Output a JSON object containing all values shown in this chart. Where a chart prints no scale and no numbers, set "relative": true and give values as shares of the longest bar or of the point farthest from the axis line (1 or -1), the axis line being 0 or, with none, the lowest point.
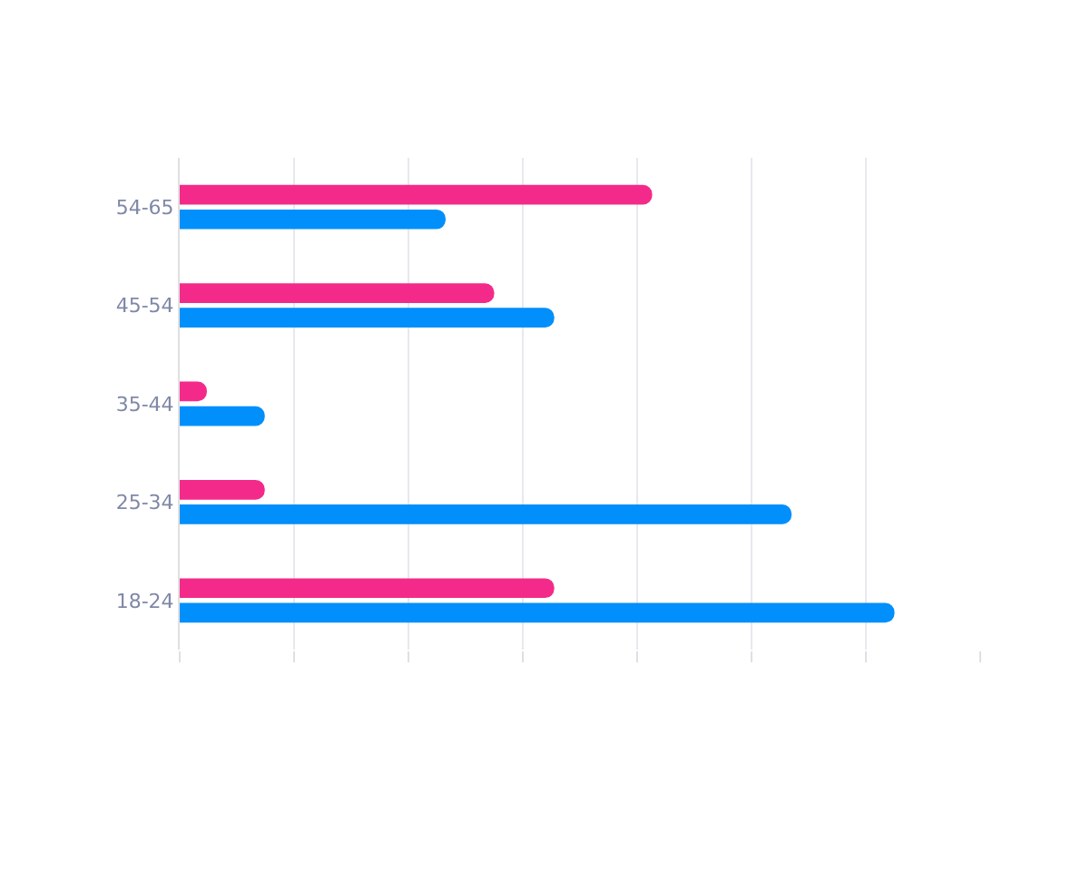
{
  "chart_data": {
    "type": "bar",
    "orientation": "horizontal",
    "relative": true,
    "grid": "x",
    "categories": [
      "54-65",
      "45-54",
      "35-44",
      "25-34",
      "18-24"
    ],
    "series": [
      {
        "color": "#f42a8b",
        "values": [
          0.661,
          0.44,
          0.038,
          0.119,
          0.524
        ]
      },
      {
        "color": "#008ffb",
        "values": [
          0.372,
          0.524,
          0.119,
          0.856,
          1
        ]
      }
    ]
  }
}
